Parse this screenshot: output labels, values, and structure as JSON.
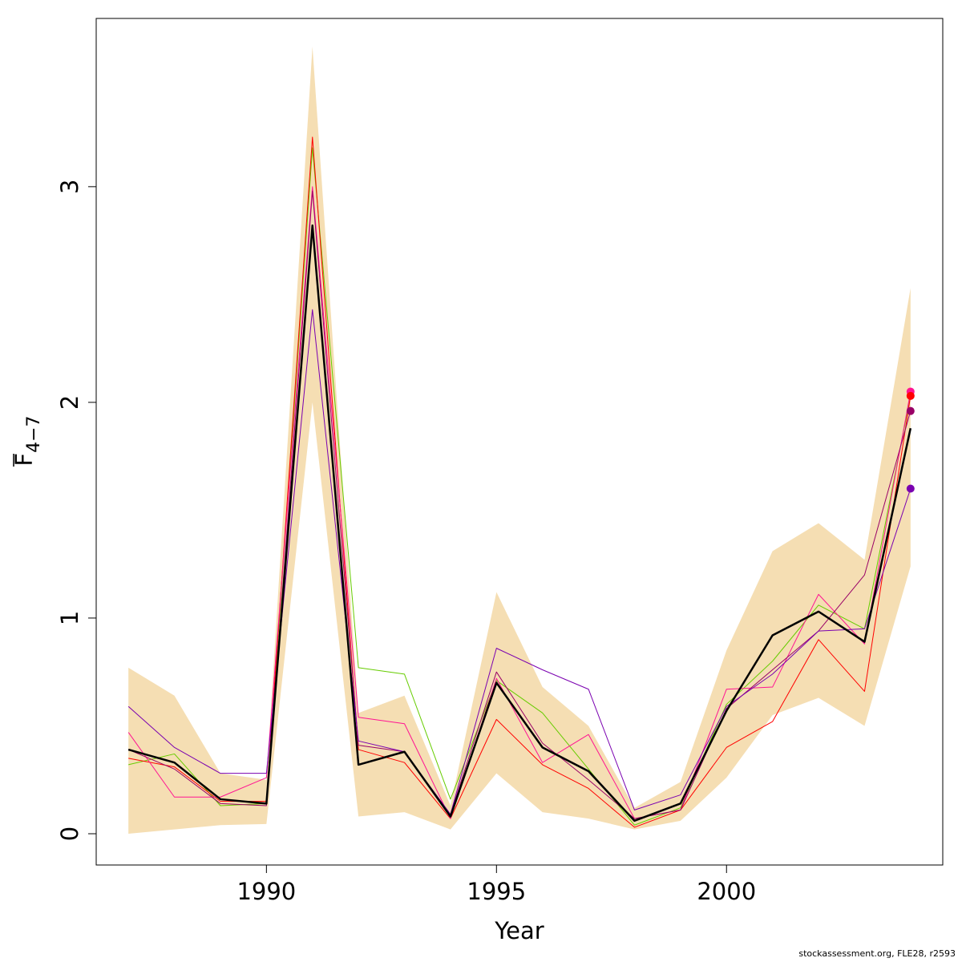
{
  "chart_data": {
    "type": "line",
    "title": "",
    "xlabel": "Year",
    "ylabel": "F̄4−7",
    "ylabel_main": "F",
    "ylabel_sub": "4−7",
    "xlim": [
      1986.3,
      2004.7
    ],
    "ylim": [
      -0.145,
      3.78
    ],
    "xticks": [
      1990,
      1995,
      2000
    ],
    "yticks": [
      0,
      1,
      2,
      3
    ],
    "grid": false,
    "legend": "none",
    "x": [
      1987,
      1988,
      1989,
      1990,
      1991,
      1992,
      1993,
      1994,
      1995,
      1996,
      1997,
      1998,
      1999,
      2000,
      2001,
      2002,
      2003,
      2004
    ],
    "band": {
      "color": "#f5deb3",
      "lower": [
        0.0,
        0.02,
        0.04,
        0.045,
        2.0,
        0.08,
        0.1,
        0.02,
        0.28,
        0.1,
        0.07,
        0.02,
        0.06,
        0.26,
        0.55,
        0.63,
        0.5,
        1.24
      ],
      "upper": [
        0.77,
        0.64,
        0.28,
        0.25,
        3.65,
        0.56,
        0.64,
        0.13,
        1.12,
        0.68,
        0.5,
        0.12,
        0.24,
        0.85,
        1.31,
        1.44,
        1.27,
        2.53
      ]
    },
    "series": [
      {
        "color": "#000000",
        "width": 2.5,
        "values": [
          0.39,
          0.33,
          0.16,
          0.14,
          2.82,
          0.32,
          0.38,
          0.08,
          0.7,
          0.4,
          0.29,
          0.06,
          0.14,
          0.57,
          0.92,
          1.03,
          0.89,
          1.88
        ]
      },
      {
        "color": "#66cc00",
        "width": 1,
        "values": [
          0.32,
          0.37,
          0.13,
          0.14,
          3.18,
          0.77,
          0.74,
          0.16,
          0.71,
          0.56,
          0.3,
          0.04,
          0.12,
          0.6,
          0.8,
          1.06,
          0.95,
          2.03
        ]
      },
      {
        "color": "#ff0000",
        "width": 1,
        "values": [
          0.35,
          0.31,
          0.15,
          0.15,
          3.23,
          0.39,
          0.33,
          0.07,
          0.53,
          0.32,
          0.21,
          0.03,
          0.11,
          0.4,
          0.52,
          0.9,
          0.66,
          2.03
        ]
      },
      {
        "color": "#ff1493",
        "width": 1,
        "values": [
          0.47,
          0.17,
          0.17,
          0.26,
          3.0,
          0.54,
          0.51,
          0.07,
          0.72,
          0.33,
          0.46,
          0.07,
          0.11,
          0.67,
          0.68,
          1.11,
          0.88,
          2.05
        ]
      },
      {
        "color": "#990066",
        "width": 1,
        "values": [
          0.39,
          0.3,
          0.14,
          0.13,
          2.98,
          0.41,
          0.38,
          0.09,
          0.75,
          0.42,
          0.25,
          0.07,
          0.11,
          0.58,
          0.76,
          0.94,
          1.2,
          1.96
        ]
      },
      {
        "color": "#7a00b0",
        "width": 1,
        "values": [
          0.59,
          0.4,
          0.28,
          0.28,
          2.43,
          0.43,
          0.38,
          0.09,
          0.86,
          0.76,
          0.67,
          0.11,
          0.18,
          0.59,
          0.74,
          0.94,
          0.95,
          1.6
        ]
      }
    ],
    "endpoints": [
      {
        "color": "#ff1493",
        "y": 2.05
      },
      {
        "color": "#ff0000",
        "y": 2.03
      },
      {
        "color": "#990066",
        "y": 1.96
      },
      {
        "color": "#7a00b0",
        "y": 1.6
      }
    ]
  },
  "footer": "stockassessment.org, FLE28, r2593"
}
